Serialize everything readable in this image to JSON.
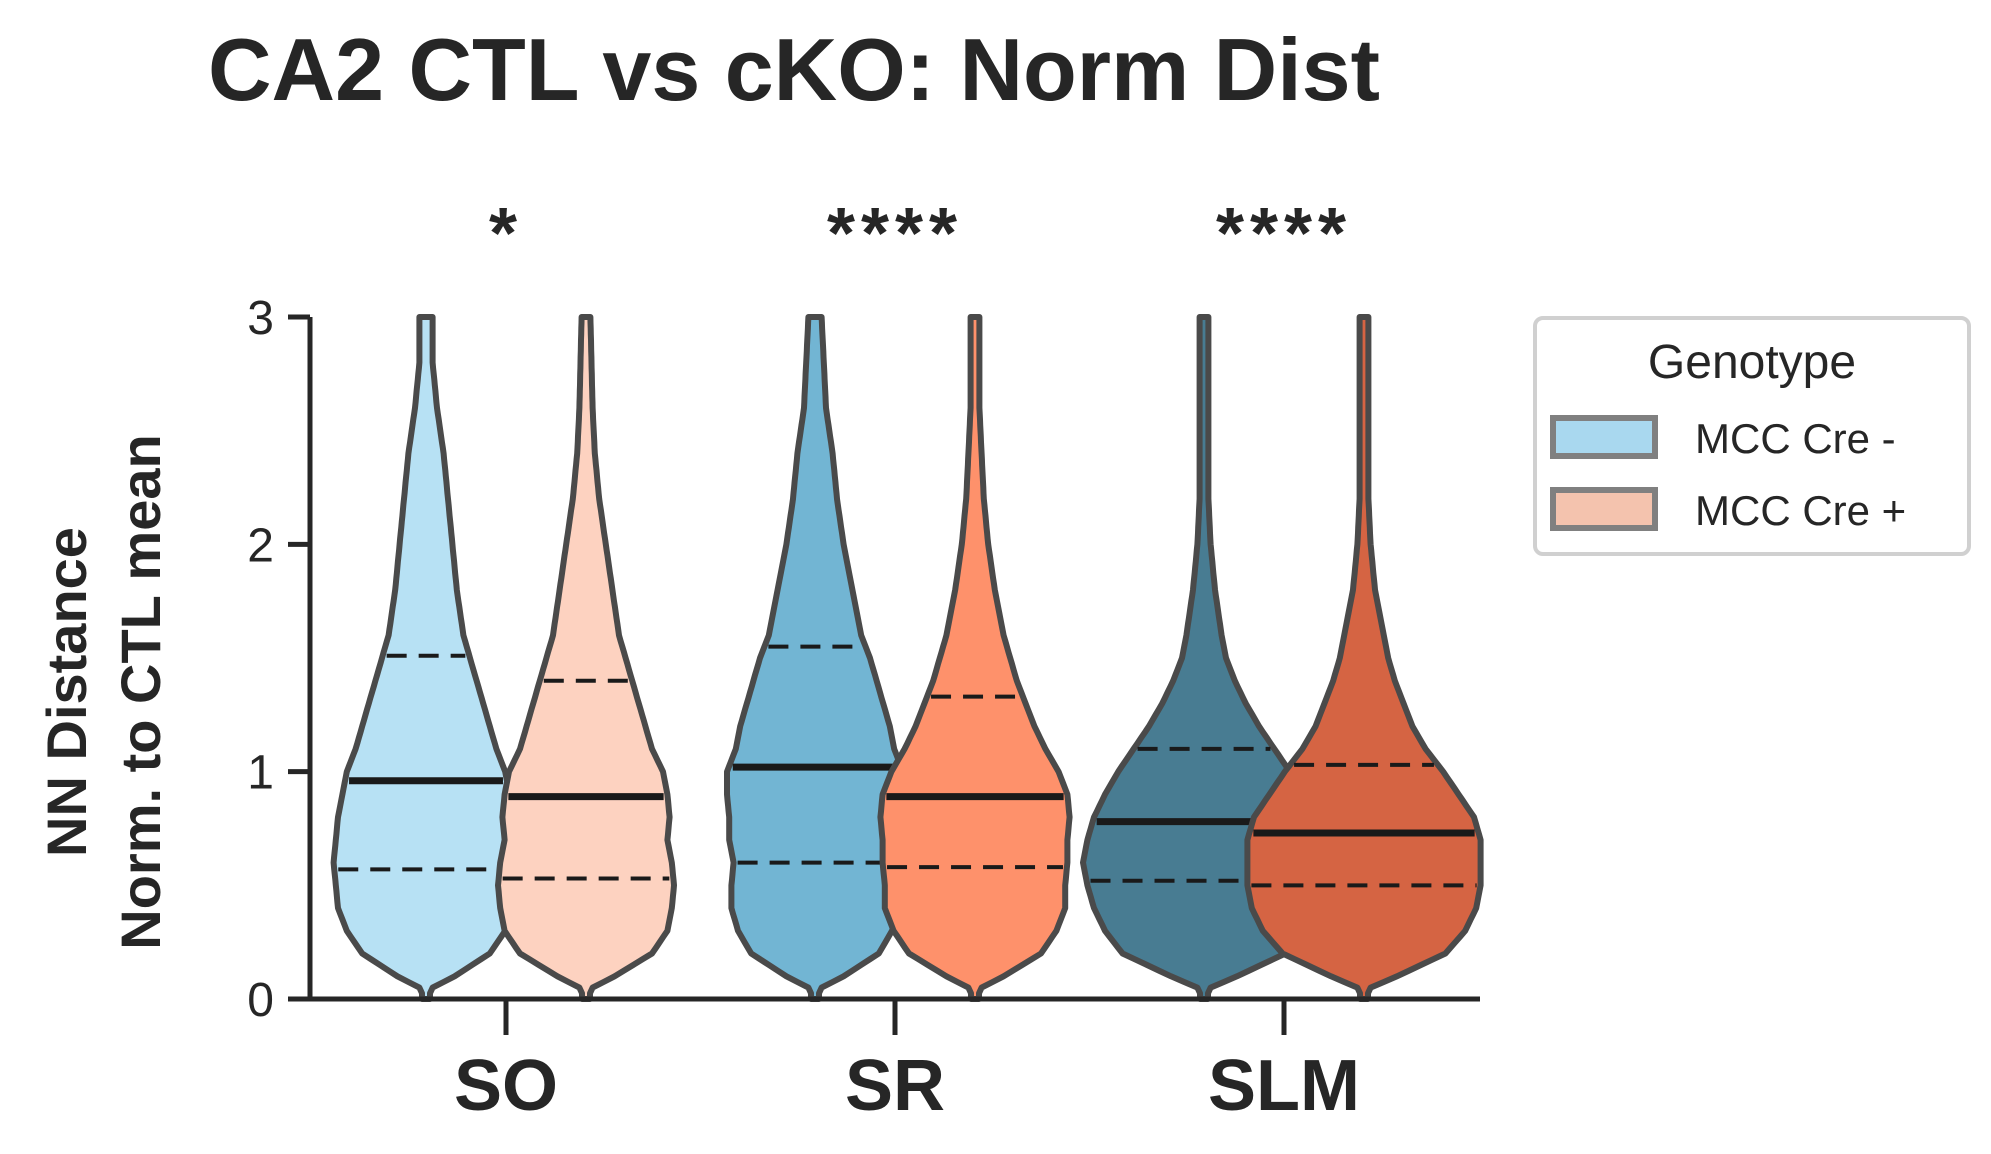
{
  "chart_data": {
    "type": "violin",
    "title": "CA2 CTL vs cKO: Norm Dist",
    "ylabel_lines": [
      "NN Distance",
      "Norm. to CTL mean"
    ],
    "xlabel": "",
    "ylim": [
      0,
      3
    ],
    "yticks": [
      "0",
      "1",
      "2",
      "3"
    ],
    "categories": [
      "SO",
      "SR",
      "SLM"
    ],
    "significance": [
      "*",
      "****",
      "****"
    ],
    "legend": {
      "title": "Genotype",
      "placement": "outside-right",
      "entries": [
        {
          "label": "MCC Cre -",
          "color": "#a9d8ef"
        },
        {
          "label": "MCC Cre +",
          "color": "#f4c3ae"
        }
      ]
    },
    "series": [
      {
        "name": "MCC Cre -",
        "groups": [
          {
            "category": "SO",
            "color": "#b7e1f4",
            "median": 0.96,
            "q1": 0.57,
            "q3": 1.51,
            "max": 3.0,
            "profile": [
              [
                0,
                0
              ],
              [
                0.05,
                0.03
              ],
              [
                0.1,
                0.13
              ],
              [
                0.2,
                0.29
              ],
              [
                0.3,
                0.36
              ],
              [
                0.4,
                0.4
              ],
              [
                0.5,
                0.41
              ],
              [
                0.6,
                0.42
              ],
              [
                0.7,
                0.41
              ],
              [
                0.8,
                0.4
              ],
              [
                0.9,
                0.38
              ],
              [
                1.0,
                0.36
              ],
              [
                1.1,
                0.32
              ],
              [
                1.2,
                0.29
              ],
              [
                1.3,
                0.26
              ],
              [
                1.4,
                0.23
              ],
              [
                1.5,
                0.2
              ],
              [
                1.6,
                0.17
              ],
              [
                1.8,
                0.14
              ],
              [
                2.0,
                0.12
              ],
              [
                2.2,
                0.1
              ],
              [
                2.4,
                0.08
              ],
              [
                2.6,
                0.05
              ],
              [
                2.8,
                0.03
              ],
              [
                3.0,
                0.03
              ]
            ]
          },
          {
            "category": "SR",
            "color": "#72b5d3",
            "median": 1.02,
            "q1": 0.6,
            "q3": 1.55,
            "max": 3.0,
            "profile": [
              [
                0,
                0
              ],
              [
                0.05,
                0.03
              ],
              [
                0.1,
                0.13
              ],
              [
                0.2,
                0.29
              ],
              [
                0.3,
                0.35
              ],
              [
                0.4,
                0.38
              ],
              [
                0.5,
                0.38
              ],
              [
                0.6,
                0.37
              ],
              [
                0.7,
                0.39
              ],
              [
                0.8,
                0.39
              ],
              [
                0.9,
                0.4
              ],
              [
                1.0,
                0.4
              ],
              [
                1.1,
                0.36
              ],
              [
                1.2,
                0.34
              ],
              [
                1.3,
                0.31
              ],
              [
                1.4,
                0.28
              ],
              [
                1.5,
                0.25
              ],
              [
                1.6,
                0.21
              ],
              [
                1.8,
                0.17
              ],
              [
                2.0,
                0.13
              ],
              [
                2.2,
                0.1
              ],
              [
                2.4,
                0.08
              ],
              [
                2.6,
                0.05
              ],
              [
                2.8,
                0.04
              ],
              [
                3.0,
                0.03
              ]
            ]
          },
          {
            "category": "SLM",
            "color": "#487c92",
            "median": 0.78,
            "q1": 0.52,
            "q3": 1.1,
            "max": 3.0,
            "profile": [
              [
                0,
                0
              ],
              [
                0.05,
                0.03
              ],
              [
                0.1,
                0.15
              ],
              [
                0.2,
                0.37
              ],
              [
                0.3,
                0.45
              ],
              [
                0.4,
                0.5
              ],
              [
                0.5,
                0.53
              ],
              [
                0.6,
                0.55
              ],
              [
                0.7,
                0.53
              ],
              [
                0.8,
                0.5
              ],
              [
                0.9,
                0.45
              ],
              [
                1.0,
                0.39
              ],
              [
                1.1,
                0.32
              ],
              [
                1.2,
                0.25
              ],
              [
                1.3,
                0.19
              ],
              [
                1.4,
                0.14
              ],
              [
                1.5,
                0.1
              ],
              [
                1.6,
                0.08
              ],
              [
                1.8,
                0.05
              ],
              [
                2.0,
                0.03
              ],
              [
                2.2,
                0.02
              ],
              [
                2.6,
                0.02
              ],
              [
                3.0,
                0.02
              ]
            ]
          }
        ]
      },
      {
        "name": "MCC Cre +",
        "groups": [
          {
            "category": "SO",
            "color": "#fdd2c0",
            "median": 0.89,
            "q1": 0.53,
            "q3": 1.4,
            "max": 3.0,
            "profile": [
              [
                0,
                0
              ],
              [
                0.05,
                0.03
              ],
              [
                0.1,
                0.13
              ],
              [
                0.2,
                0.3
              ],
              [
                0.3,
                0.37
              ],
              [
                0.4,
                0.39
              ],
              [
                0.5,
                0.4
              ],
              [
                0.6,
                0.39
              ],
              [
                0.7,
                0.37
              ],
              [
                0.8,
                0.38
              ],
              [
                0.9,
                0.37
              ],
              [
                1.0,
                0.35
              ],
              [
                1.1,
                0.3
              ],
              [
                1.2,
                0.27
              ],
              [
                1.3,
                0.24
              ],
              [
                1.4,
                0.21
              ],
              [
                1.5,
                0.18
              ],
              [
                1.6,
                0.15
              ],
              [
                1.8,
                0.12
              ],
              [
                2.0,
                0.09
              ],
              [
                2.2,
                0.06
              ],
              [
                2.4,
                0.04
              ],
              [
                2.6,
                0.03
              ],
              [
                3.0,
                0.02
              ]
            ]
          },
          {
            "category": "SR",
            "color": "#fe916b",
            "median": 0.89,
            "q1": 0.58,
            "q3": 1.33,
            "max": 3.0,
            "profile": [
              [
                0,
                0
              ],
              [
                0.05,
                0.03
              ],
              [
                0.1,
                0.13
              ],
              [
                0.2,
                0.3
              ],
              [
                0.3,
                0.37
              ],
              [
                0.4,
                0.41
              ],
              [
                0.5,
                0.41
              ],
              [
                0.6,
                0.42
              ],
              [
                0.7,
                0.42
              ],
              [
                0.8,
                0.43
              ],
              [
                0.9,
                0.42
              ],
              [
                1.0,
                0.38
              ],
              [
                1.1,
                0.32
              ],
              [
                1.2,
                0.27
              ],
              [
                1.3,
                0.23
              ],
              [
                1.4,
                0.19
              ],
              [
                1.5,
                0.16
              ],
              [
                1.6,
                0.13
              ],
              [
                1.8,
                0.09
              ],
              [
                2.0,
                0.06
              ],
              [
                2.2,
                0.04
              ],
              [
                2.4,
                0.03
              ],
              [
                2.6,
                0.02
              ],
              [
                3.0,
                0.02
              ]
            ]
          },
          {
            "category": "SLM",
            "color": "#d56443",
            "median": 0.73,
            "q1": 0.5,
            "q3": 1.03,
            "max": 3.0,
            "profile": [
              [
                0,
                0
              ],
              [
                0.05,
                0.03
              ],
              [
                0.1,
                0.15
              ],
              [
                0.2,
                0.37
              ],
              [
                0.3,
                0.46
              ],
              [
                0.4,
                0.51
              ],
              [
                0.5,
                0.53
              ],
              [
                0.6,
                0.53
              ],
              [
                0.7,
                0.53
              ],
              [
                0.8,
                0.5
              ],
              [
                0.9,
                0.43
              ],
              [
                1.0,
                0.36
              ],
              [
                1.1,
                0.28
              ],
              [
                1.2,
                0.22
              ],
              [
                1.3,
                0.18
              ],
              [
                1.4,
                0.14
              ],
              [
                1.5,
                0.11
              ],
              [
                1.6,
                0.09
              ],
              [
                1.8,
                0.05
              ],
              [
                2.0,
                0.03
              ],
              [
                2.2,
                0.02
              ],
              [
                2.6,
                0.02
              ],
              [
                3.0,
                0.02
              ]
            ]
          }
        ]
      }
    ]
  }
}
